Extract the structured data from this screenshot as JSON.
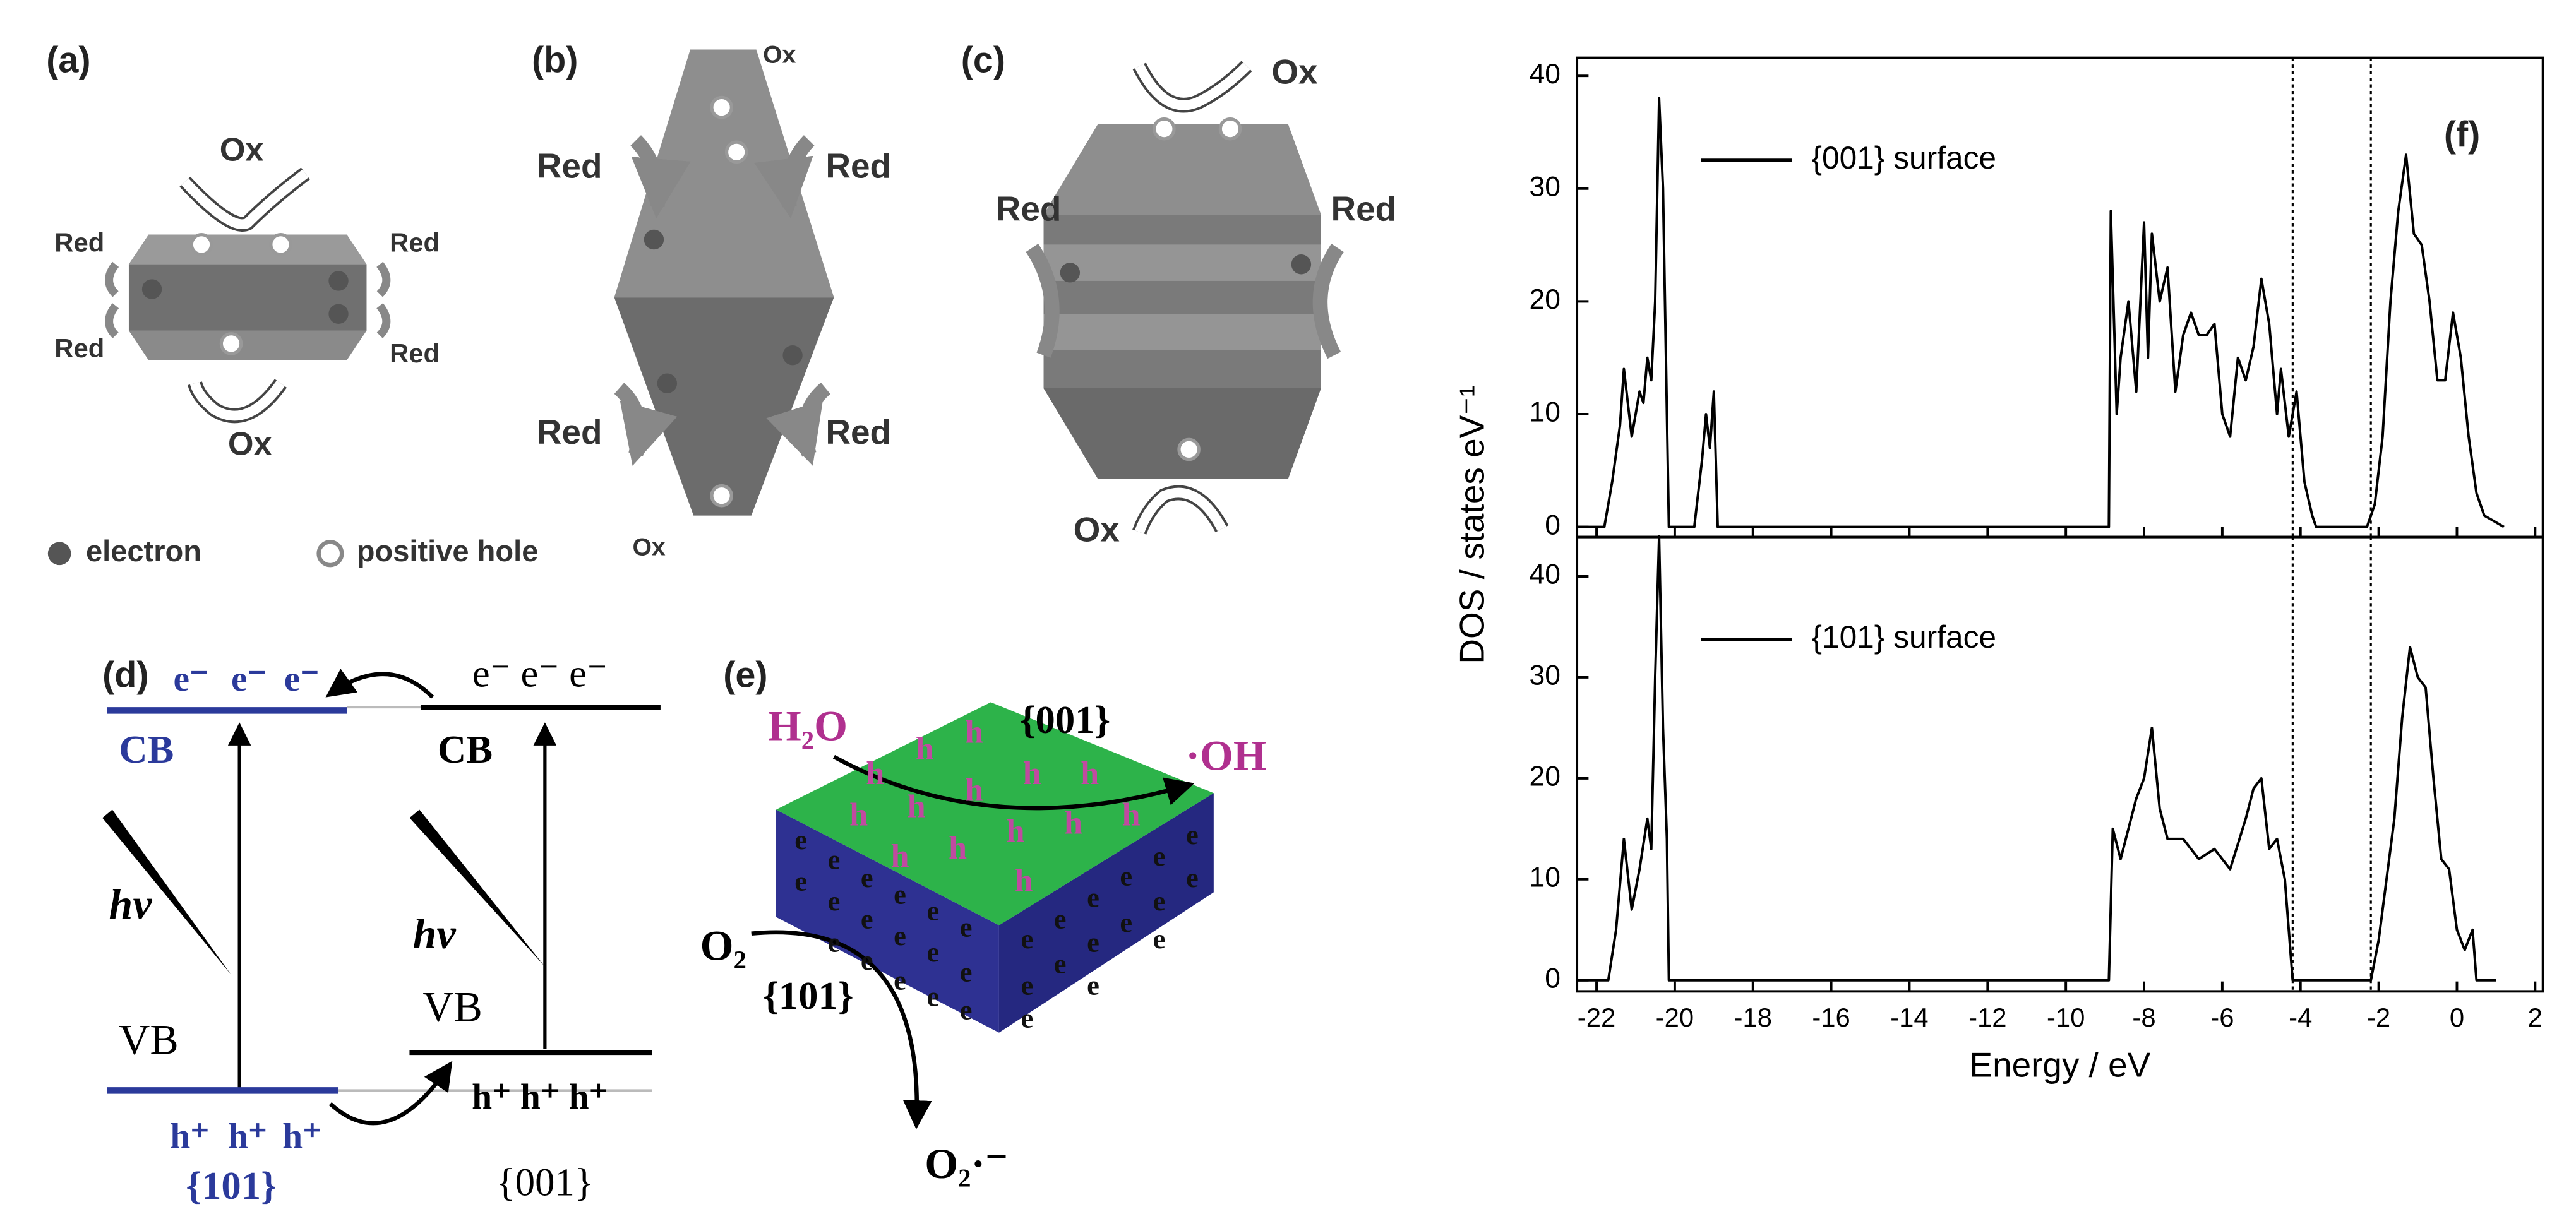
{
  "panels": {
    "a": {
      "label": "(a)",
      "ox": [
        "Ox",
        "Ox"
      ],
      "red": [
        "Red",
        "Red",
        "Red",
        "Red"
      ]
    },
    "legend": {
      "electron": "electron",
      "hole": "positive hole"
    },
    "b": {
      "label": "(b)",
      "ox": [
        "Ox",
        "Ox"
      ],
      "red": [
        "Red",
        "Red",
        "Red",
        "Red"
      ]
    },
    "c": {
      "label": "(c)",
      "ox": [
        "Ox",
        "Ox"
      ],
      "red": [
        "Red",
        "Red"
      ]
    },
    "d": {
      "label": "(d)",
      "left": {
        "electrons": [
          "e⁻",
          "e⁻",
          "e⁻"
        ],
        "cb": "CB",
        "hv": "hν",
        "vb": "VB",
        "holes": [
          "h⁺",
          "h⁺",
          "h⁺"
        ],
        "facet": "{101}"
      },
      "right": {
        "electrons": "e⁻ e⁻ e⁻",
        "cb": "CB",
        "hv": "hν",
        "vb": "VB",
        "holes": "h⁺ h⁺ h⁺",
        "facet": "{001}"
      }
    },
    "e": {
      "label": "(e)",
      "top_facet": "{001}",
      "reactant_top": "H₂O",
      "product_top": "·OH",
      "reactant_bottom": "O₂",
      "side_facet": "{101}",
      "product_bottom": "O₂·⁻",
      "hole": "h",
      "electron": "e"
    },
    "f": {
      "label": "(f)"
    }
  },
  "chart_data": [
    {
      "type": "line",
      "ylabel": "DOS / states eV⁻¹",
      "x": [
        -22.5,
        -21.8,
        -21.6,
        -21.4,
        -21.3,
        -21.1,
        -21.0,
        -20.9,
        -20.8,
        -20.7,
        -20.6,
        -20.5,
        -20.4,
        -20.3,
        -20.2,
        -20.15,
        -19.5,
        -19.3,
        -19.2,
        -19.1,
        -19.0,
        -18.9,
        -8.9,
        -8.85,
        -8.7,
        -8.6,
        -8.4,
        -8.2,
        -8.0,
        -7.9,
        -7.8,
        -7.6,
        -7.4,
        -7.2,
        -7.0,
        -6.8,
        -6.6,
        -6.4,
        -6.2,
        -6.0,
        -5.8,
        -5.6,
        -5.4,
        -5.2,
        -5.0,
        -4.8,
        -4.6,
        -4.5,
        -4.3,
        -4.1,
        -3.9,
        -3.7,
        -3.6,
        -2.3,
        -2.1,
        -1.9,
        -1.7,
        -1.5,
        -1.3,
        -1.1,
        -0.9,
        -0.7,
        -0.5,
        -0.3,
        -0.1,
        0.1,
        0.3,
        0.5,
        0.7,
        1.2
      ],
      "series": [
        {
          "name": "{001} surface",
          "color": "#000000",
          "values": [
            0,
            0,
            4,
            9,
            14,
            8,
            10,
            12,
            11,
            15,
            13,
            20,
            38,
            30,
            10,
            0,
            0,
            6,
            10,
            7,
            12,
            0,
            0,
            28,
            10,
            15,
            20,
            12,
            27,
            15,
            26,
            20,
            23,
            12,
            17,
            19,
            17,
            17,
            18,
            10,
            8,
            15,
            13,
            16,
            22,
            18,
            10,
            14,
            8,
            12,
            4,
            1,
            0,
            0,
            2,
            8,
            20,
            28,
            33,
            26,
            25,
            20,
            13,
            13,
            19,
            15,
            8,
            3,
            1,
            0
          ]
        }
      ],
      "xlim": [
        -22.5,
        2.2
      ],
      "ylim": [
        -0.9,
        41.6
      ],
      "yticks": [
        0,
        10,
        20,
        30,
        40
      ],
      "vlines": [
        -4.2,
        -2.2
      ]
    },
    {
      "type": "line",
      "xlabel": "Energy / eV",
      "x": [
        -22.5,
        -21.7,
        -21.5,
        -21.3,
        -21.1,
        -20.9,
        -20.7,
        -20.6,
        -20.5,
        -20.4,
        -20.3,
        -20.2,
        -20.15,
        -8.9,
        -8.8,
        -8.6,
        -8.4,
        -8.2,
        -8.0,
        -7.8,
        -7.6,
        -7.4,
        -7.0,
        -6.6,
        -6.2,
        -5.8,
        -5.4,
        -5.2,
        -5.0,
        -4.8,
        -4.6,
        -4.4,
        -4.2,
        -2.2,
        -2.0,
        -1.8,
        -1.6,
        -1.4,
        -1.2,
        -1.0,
        -0.8,
        -0.6,
        -0.4,
        -0.2,
        0,
        0.2,
        0.4,
        0.5,
        1.0
      ],
      "series": [
        {
          "name": "{101} surface",
          "color": "#000000",
          "values": [
            0,
            0,
            5,
            14,
            7,
            11,
            16,
            13,
            30,
            44,
            25,
            14,
            0,
            0,
            15,
            12,
            15,
            18,
            20,
            25,
            17,
            14,
            14,
            12,
            13,
            11,
            16,
            19,
            20,
            13,
            14,
            10,
            0,
            0,
            4,
            10,
            16,
            26,
            33,
            30,
            29,
            20,
            12,
            11,
            5,
            3,
            5,
            0,
            0
          ]
        }
      ],
      "xlim": [
        -22.5,
        2.2
      ],
      "ylim": [
        -1.1,
        43.9
      ],
      "xticks": [
        -22,
        -20,
        -18,
        -16,
        -14,
        -12,
        -10,
        -8,
        -6,
        -4,
        -2,
        0,
        2
      ],
      "yticks": [
        0,
        10,
        20,
        30,
        40
      ],
      "vlines": [
        -4.2,
        -2.2
      ]
    }
  ]
}
